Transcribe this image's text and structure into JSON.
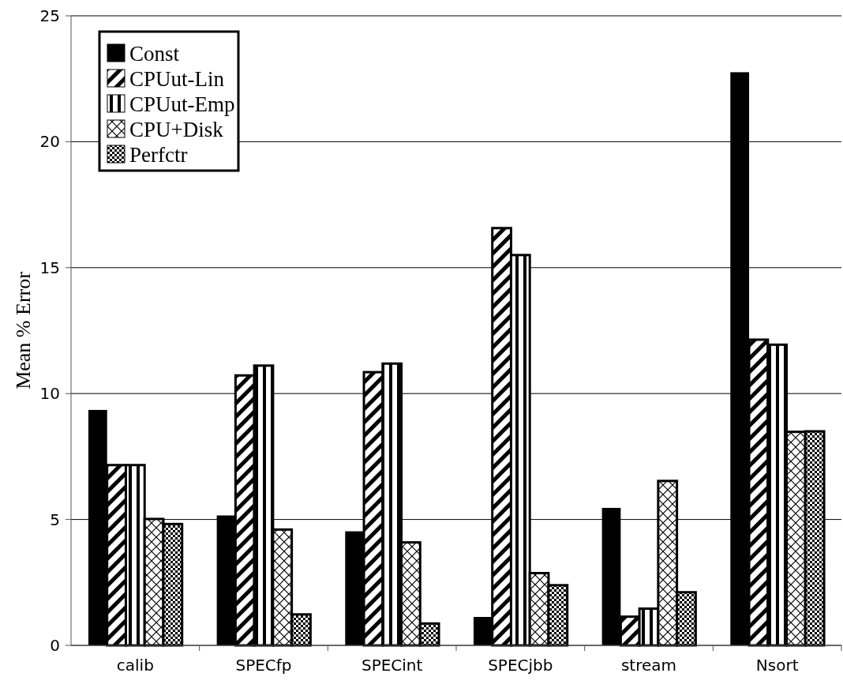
{
  "chart_data": {
    "type": "bar",
    "ylabel": "Mean % Error",
    "categories": [
      "calib",
      "SPECfp",
      "SPECint",
      "SPECjbb",
      "stream",
      "Nsort"
    ],
    "series": [
      {
        "name": "Const",
        "color": "#000000",
        "values": [
          9.35,
          5.16,
          4.53,
          1.13,
          5.46,
          22.76
        ]
      },
      {
        "name": "CPUut-Lin",
        "color": "#000000",
        "values": [
          7.16,
          10.72,
          10.85,
          16.57,
          1.14,
          12.14
        ]
      },
      {
        "name": "CPUut-Emp",
        "color": "#000000",
        "values": [
          7.16,
          11.11,
          11.19,
          15.5,
          1.46,
          11.94
        ]
      },
      {
        "name": "CPU+Disk",
        "color": "#000000",
        "values": [
          5.02,
          4.6,
          4.09,
          2.87,
          6.53,
          8.48
        ]
      },
      {
        "name": "Perfctr",
        "color": "#000000",
        "values": [
          4.82,
          1.23,
          0.87,
          2.39,
          2.11,
          8.5
        ]
      }
    ],
    "ylim": [
      0,
      25
    ],
    "yticks": [
      0,
      5,
      10,
      15,
      20,
      25
    ],
    "grid": "y",
    "legend": "top left"
  }
}
